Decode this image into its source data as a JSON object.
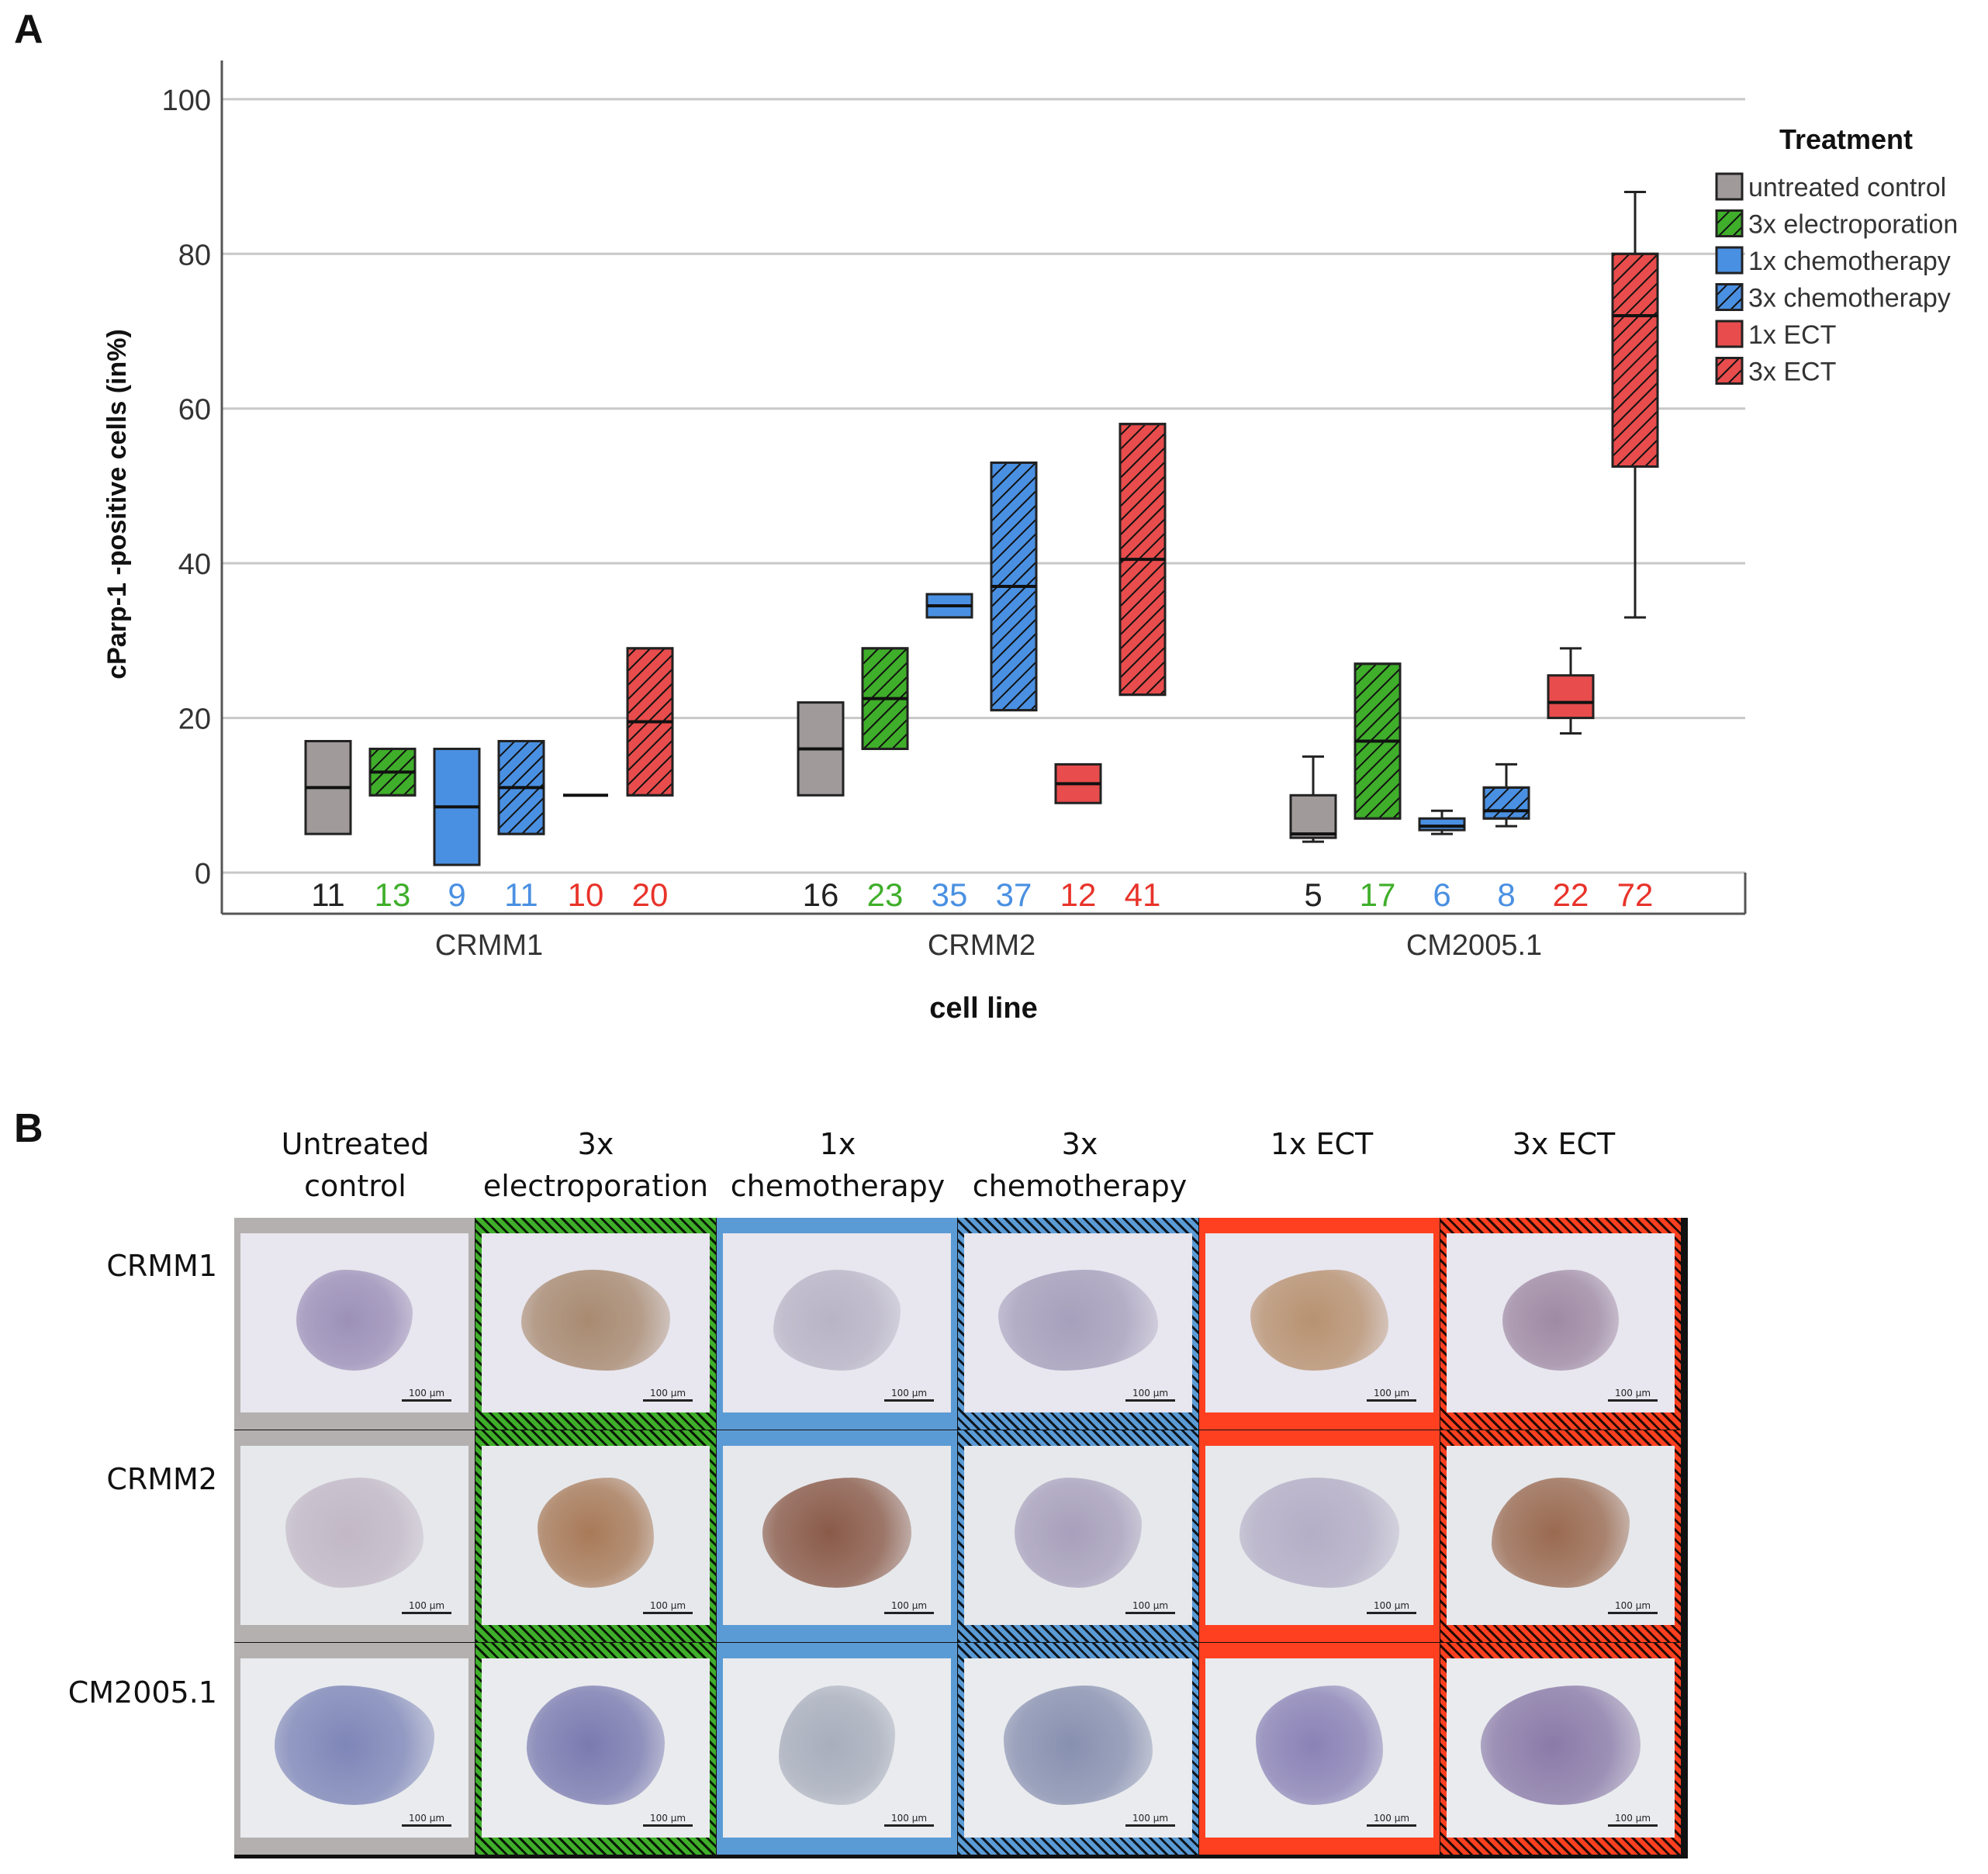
{
  "panel_a_label": "A",
  "panel_b_label": "B",
  "chart_data": {
    "type": "box",
    "title": "",
    "xlabel": "cell line",
    "ylabel": "cParp-1 -positive cells (in%)",
    "ylim": [
      0,
      105
    ],
    "yticks": [
      0,
      20,
      40,
      60,
      80,
      100
    ],
    "grid": true,
    "legend_title": "Treatment",
    "legend_position": "top-right",
    "categories": [
      "CRMM1",
      "CRMM2",
      "CM2005.1"
    ],
    "series": [
      {
        "name": "untreated control",
        "color": "#a09a9a",
        "hatched": false,
        "label_color": "#222222",
        "boxes": [
          {
            "min": 5,
            "q1": 5,
            "median": 11,
            "q3": 17,
            "max": 17,
            "label": "11"
          },
          {
            "min": 10,
            "q1": 10,
            "median": 16,
            "q3": 22,
            "max": 22,
            "label": "16"
          },
          {
            "min": 4,
            "q1": 4.5,
            "median": 5,
            "q3": 10,
            "max": 15,
            "label": "5"
          }
        ]
      },
      {
        "name": "3x electroporation",
        "color": "#3fae2a",
        "hatched": true,
        "label_color": "#3fae2a",
        "boxes": [
          {
            "min": 10,
            "q1": 10,
            "median": 13,
            "q3": 16,
            "max": 16,
            "label": "13"
          },
          {
            "min": 16,
            "q1": 16,
            "median": 22.5,
            "q3": 29,
            "max": 29,
            "label": "23"
          },
          {
            "min": 7,
            "q1": 7,
            "median": 17,
            "q3": 27,
            "max": 27,
            "label": "17"
          }
        ]
      },
      {
        "name": "1x chemotherapy",
        "color": "#4a90e2",
        "hatched": false,
        "label_color": "#4a90e2",
        "boxes": [
          {
            "min": 1,
            "q1": 1,
            "median": 8.5,
            "q3": 16,
            "max": 16,
            "label": "9"
          },
          {
            "min": 33,
            "q1": 33,
            "median": 34.5,
            "q3": 36,
            "max": 36,
            "label": "35"
          },
          {
            "min": 5,
            "q1": 5.5,
            "median": 6,
            "q3": 7,
            "max": 8,
            "label": "6"
          }
        ]
      },
      {
        "name": "3x chemotherapy",
        "color": "#4a90e2",
        "hatched": true,
        "label_color": "#4a90e2",
        "boxes": [
          {
            "min": 5,
            "q1": 5,
            "median": 11,
            "q3": 17,
            "max": 17,
            "label": "11"
          },
          {
            "min": 21,
            "q1": 21,
            "median": 37,
            "q3": 53,
            "max": 53,
            "label": "37"
          },
          {
            "min": 6,
            "q1": 7,
            "median": 8,
            "q3": 11,
            "max": 14,
            "label": "8"
          }
        ]
      },
      {
        "name": "1x ECT",
        "color": "#e84c4c",
        "hatched": false,
        "label_color": "#e8332a",
        "boxes": [
          {
            "min": 10,
            "q1": 10,
            "median": 10,
            "q3": 10,
            "max": 10,
            "label": "10"
          },
          {
            "min": 9,
            "q1": 9,
            "median": 11.5,
            "q3": 14,
            "max": 14,
            "label": "12"
          },
          {
            "min": 18,
            "q1": 20,
            "median": 22,
            "q3": 25.5,
            "max": 29,
            "label": "22"
          }
        ]
      },
      {
        "name": "3x ECT",
        "color": "#e84c4c",
        "hatched": true,
        "label_color": "#e8332a",
        "boxes": [
          {
            "min": 10,
            "q1": 10,
            "median": 19.5,
            "q3": 29,
            "max": 29,
            "label": "20"
          },
          {
            "min": 23,
            "q1": 23,
            "median": 40.5,
            "q3": 58,
            "max": 58,
            "label": "41"
          },
          {
            "min": 33,
            "q1": 52.5,
            "median": 72,
            "q3": 80,
            "max": 88,
            "label": "72"
          }
        ]
      }
    ]
  },
  "micrographs": {
    "columns": [
      {
        "line1": "Untreated",
        "line2": "control",
        "border_color": "#b4b0b0",
        "hatched": false
      },
      {
        "line1": "3x",
        "line2": "electroporation",
        "border_color": "#3fae2a",
        "hatched": true
      },
      {
        "line1": "1x",
        "line2": "chemotherapy",
        "border_color": "#5b9bd5",
        "hatched": false
      },
      {
        "line1": "3x",
        "line2": "chemotherapy",
        "border_color": "#5b9bd5",
        "hatched": true
      },
      {
        "line1": "1x ECT",
        "line2": "",
        "border_color": "#ff4020",
        "hatched": false
      },
      {
        "line1": "3x ECT",
        "line2": "",
        "border_color": "#ff4020",
        "hatched": true
      }
    ],
    "rows": [
      "CRMM1",
      "CRMM2",
      "CM2005.1"
    ],
    "scale_bar_label": "100 µm"
  }
}
